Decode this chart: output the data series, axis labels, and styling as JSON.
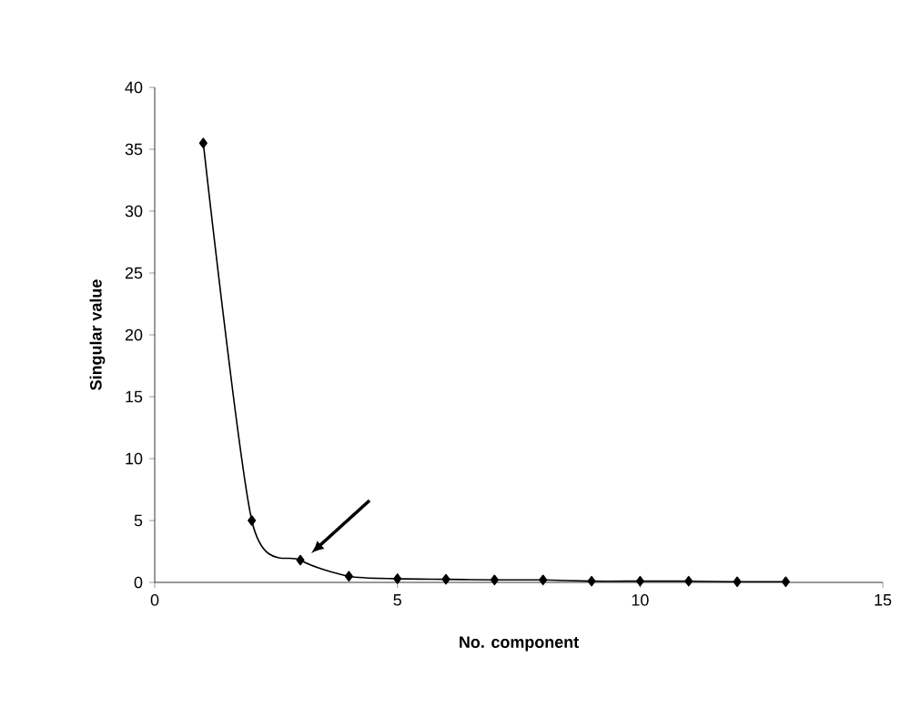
{
  "chart_data": {
    "type": "line",
    "xlabel": "No. component",
    "ylabel": "Singular value",
    "x": [
      1,
      2,
      3,
      4,
      5,
      6,
      7,
      8,
      9,
      10,
      11,
      12,
      13
    ],
    "values": [
      35.5,
      5,
      1.8,
      0.5,
      0.3,
      0.25,
      0.2,
      0.2,
      0.1,
      0.1,
      0.1,
      0.05,
      0.05
    ],
    "color": "#000000",
    "marker": "diamond",
    "line_style": "solid",
    "xlim": [
      0,
      15
    ],
    "ylim": [
      0,
      40
    ],
    "xticks": [
      0,
      5,
      10,
      15
    ],
    "yticks": [
      0,
      5,
      10,
      15,
      20,
      25,
      30,
      35,
      40
    ]
  }
}
